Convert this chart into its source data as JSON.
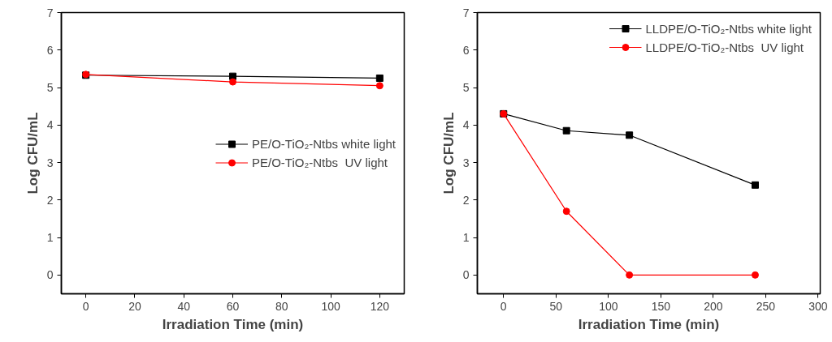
{
  "chart_data": [
    {
      "type": "line",
      "xlabel": "Irradiation Time (min)",
      "ylabel": "Log CFU/mL",
      "x": [
        0,
        60,
        120
      ],
      "xlim": [
        -10,
        130
      ],
      "xticks": [
        0,
        20,
        40,
        60,
        80,
        100,
        120
      ],
      "ylim": [
        -0.5,
        7
      ],
      "yticks": [
        0,
        1,
        2,
        3,
        4,
        5,
        6,
        7
      ],
      "grid": false,
      "legend": "right",
      "series": [
        {
          "name": "PE/O-TiO₂-Ntbs white light",
          "color": "#000000",
          "marker": "square",
          "values": [
            5.33,
            5.3,
            5.25
          ]
        },
        {
          "name": "PE/O-TiO₂-Ntbs  UV light",
          "color": "#ff0000",
          "marker": "circle",
          "values": [
            5.35,
            5.15,
            5.05
          ]
        }
      ]
    },
    {
      "type": "line",
      "xlabel": "Irradiation Time (min)",
      "ylabel": "Log CFU/mL",
      "x": [
        0,
        60,
        120,
        240
      ],
      "xlim": [
        -25,
        302
      ],
      "xticks": [
        0,
        50,
        100,
        150,
        200,
        250,
        300
      ],
      "ylim": [
        -0.5,
        7
      ],
      "yticks": [
        0,
        1,
        2,
        3,
        4,
        5,
        6,
        7
      ],
      "grid": false,
      "legend": "top right",
      "series": [
        {
          "name": "LLDPE/O-TiO₂-Ntbs white light",
          "color": "#000000",
          "marker": "square",
          "values": [
            4.3,
            3.85,
            3.73,
            2.4
          ]
        },
        {
          "name": "LLDPE/O-TiO₂-Ntbs  UV light",
          "color": "#ff0000",
          "marker": "circle",
          "values": [
            4.3,
            1.7,
            0,
            0
          ]
        }
      ]
    }
  ]
}
